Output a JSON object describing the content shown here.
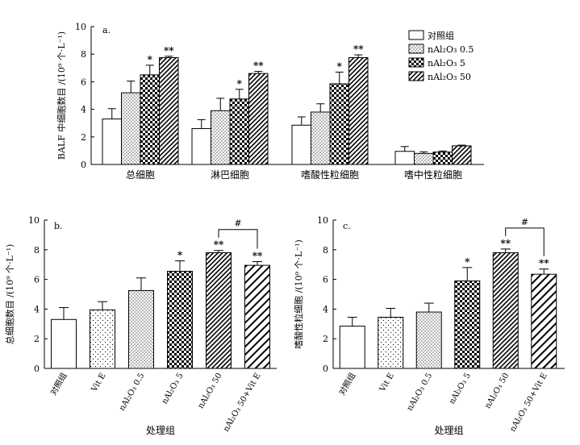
{
  "figure": {
    "id": "BALF-figure"
  },
  "colors": {
    "ink": "#000000",
    "bg": "#ffffff"
  },
  "chart_data": [
    {
      "panel": "a.",
      "type": "bar",
      "ylabel": "BALF 中细胞数目 /(10⁹ 个·L⁻¹)",
      "xlabel": "",
      "ylim": [
        0,
        10
      ],
      "yticks": [
        "0",
        "2",
        "4",
        "6",
        "8",
        "10"
      ],
      "categories": [
        "总细胞",
        "淋巴细胞",
        "嗜酸性粒细胞",
        "嗜中性粒细胞"
      ],
      "series": [
        {
          "name": "对照组",
          "pattern": "blank",
          "values": [
            3.3,
            2.6,
            2.85,
            0.95
          ],
          "errors": [
            0.75,
            0.65,
            0.6,
            0.35
          ],
          "marks": [
            "",
            "",
            "",
            ""
          ]
        },
        {
          "name": "nAl₂O₃ 0.5",
          "pattern": "dots",
          "values": [
            5.2,
            3.9,
            3.8,
            0.8
          ],
          "errors": [
            0.85,
            0.9,
            0.6,
            0.12
          ],
          "marks": [
            "",
            "",
            "",
            ""
          ]
        },
        {
          "name": "nAl₂O₃ 5",
          "pattern": "checker",
          "values": [
            6.5,
            4.75,
            5.85,
            0.9
          ],
          "errors": [
            0.7,
            0.7,
            0.85,
            0.08
          ],
          "marks": [
            "*",
            "*",
            "*",
            ""
          ]
        },
        {
          "name": "nAl₂O₃ 50",
          "pattern": "hatch",
          "values": [
            7.75,
            6.6,
            7.75,
            1.35
          ],
          "errors": [
            0.1,
            0.15,
            0.2,
            0.05
          ],
          "marks": [
            "**",
            "**",
            "**",
            ""
          ]
        }
      ],
      "legend": [
        "对照组",
        "nAl₂O₃ 0.5",
        "nAl₂O₃ 5",
        "nAl₂O₃ 50"
      ],
      "legend_position": "top-right"
    },
    {
      "panel": "b.",
      "type": "bar",
      "ylabel": "总细胞数目 /(10⁹ 个·L⁻¹)",
      "xlabel": "处理组",
      "ylim": [
        0,
        10
      ],
      "yticks": [
        "0",
        "2",
        "4",
        "6",
        "8",
        "10"
      ],
      "categories": [
        "对照组",
        "Vit E",
        "nAl₂O₃ 0.5",
        "nAl₂O₃ 5",
        "nAl₂O₃ 50",
        "nAl₂O₃ 50+Vit E"
      ],
      "patterns": [
        "blank",
        "sparse-dots",
        "dots",
        "checker",
        "hatch",
        "wide-hatch"
      ],
      "values": [
        3.3,
        3.95,
        5.25,
        6.55,
        7.8,
        6.95
      ],
      "errors": [
        0.8,
        0.55,
        0.85,
        0.7,
        0.15,
        0.25
      ],
      "marks": [
        "",
        "",
        "",
        "*",
        "**",
        "**"
      ],
      "bracket": {
        "from": 4,
        "to": 5,
        "label": "#"
      }
    },
    {
      "panel": "c.",
      "type": "bar",
      "ylabel": "嗜酸性粒细胞 /(10⁹ 个·L⁻¹)",
      "xlabel": "处理组",
      "ylim": [
        0,
        10
      ],
      "yticks": [
        "0",
        "2",
        "4",
        "6",
        "8",
        "10"
      ],
      "categories": [
        "对照组",
        "Vit E",
        "nAl₂O₃ 0.5",
        "nAl₂O₃ 5",
        "nAl₂O₃ 50",
        "nAl₂O₃ 50+Vit E"
      ],
      "patterns": [
        "blank",
        "sparse-dots",
        "dots",
        "checker",
        "hatch",
        "wide-hatch"
      ],
      "values": [
        2.85,
        3.45,
        3.8,
        5.9,
        7.8,
        6.35
      ],
      "errors": [
        0.6,
        0.6,
        0.6,
        0.9,
        0.25,
        0.35
      ],
      "marks": [
        "",
        "",
        "",
        "*",
        "**",
        "**"
      ],
      "bracket": {
        "from": 4,
        "to": 5,
        "label": "#"
      }
    }
  ]
}
